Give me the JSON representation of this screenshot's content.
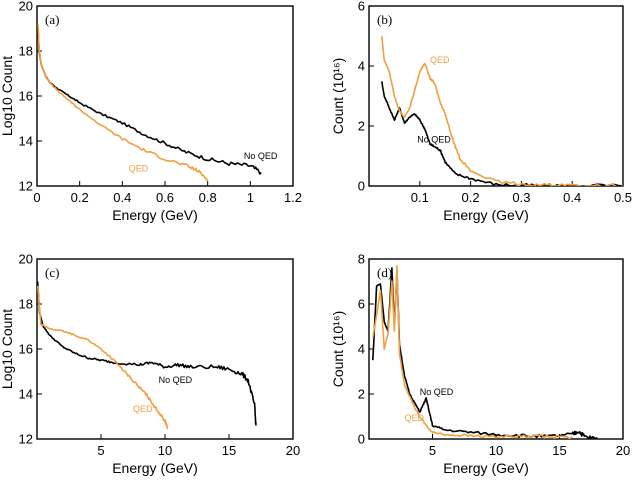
{
  "chart_data": [
    {
      "id": "a",
      "type": "line",
      "panel_label": "(a)",
      "xlabel": "Energy (GeV)",
      "ylabel": "Log10 Count",
      "xlim": [
        0,
        1.2
      ],
      "ylim": [
        12,
        20
      ],
      "xticks": [
        0,
        0.2,
        0.4,
        0.6,
        0.8,
        1,
        1.2
      ],
      "xtick_labels": [
        "0",
        "0.2",
        "0.4",
        "0.6",
        "0.8",
        "1",
        "1.2"
      ],
      "yticks": [
        12,
        14,
        16,
        18,
        20
      ],
      "ytick_labels": [
        "12",
        "14",
        "16",
        "18",
        "20"
      ],
      "series": [
        {
          "name": "No QED",
          "color": "#000000",
          "x": [
            0.005,
            0.01,
            0.02,
            0.04,
            0.06,
            0.1,
            0.15,
            0.2,
            0.3,
            0.4,
            0.5,
            0.6,
            0.7,
            0.8,
            0.9,
            1.0,
            1.05
          ],
          "y": [
            19.0,
            18.0,
            17.4,
            16.9,
            16.6,
            16.3,
            16.0,
            15.7,
            15.2,
            14.8,
            14.3,
            13.9,
            13.5,
            13.2,
            13.0,
            12.9,
            12.6
          ]
        },
        {
          "name": "QED",
          "color": "#f0a040",
          "x": [
            0.005,
            0.01,
            0.02,
            0.04,
            0.06,
            0.1,
            0.15,
            0.2,
            0.3,
            0.4,
            0.5,
            0.6,
            0.7,
            0.75,
            0.8
          ],
          "y": [
            19.2,
            18.1,
            17.4,
            16.9,
            16.6,
            16.2,
            15.8,
            15.4,
            14.7,
            14.1,
            13.6,
            13.2,
            12.9,
            12.7,
            12.3
          ]
        }
      ],
      "annotations": [
        {
          "text": "No QED",
          "x": 0.97,
          "y": 13.2,
          "color": "#000000"
        },
        {
          "text": "QED",
          "x": 0.43,
          "y": 12.65,
          "color": "#f0a040"
        }
      ]
    },
    {
      "id": "b",
      "type": "line",
      "panel_label": "(b)",
      "xlabel": "Energy (GeV)",
      "ylabel": "Count (10¹⁶)",
      "xlim": [
        0,
        0.5
      ],
      "ylim": [
        0,
        6
      ],
      "xticks": [
        0.1,
        0.2,
        0.3,
        0.4,
        0.5
      ],
      "xtick_labels": [
        "0.1",
        "0.2",
        "0.3",
        "0.4",
        "0.5"
      ],
      "yticks": [
        0,
        2,
        4,
        6
      ],
      "ytick_labels": [
        "0",
        "2",
        "4",
        "6"
      ],
      "series": [
        {
          "name": "No QED",
          "color": "#000000",
          "x": [
            0.025,
            0.03,
            0.04,
            0.05,
            0.06,
            0.07,
            0.08,
            0.09,
            0.1,
            0.11,
            0.12,
            0.13,
            0.14,
            0.15,
            0.17,
            0.2,
            0.25,
            0.3,
            0.35,
            0.4,
            0.5
          ],
          "y": [
            3.5,
            3.0,
            2.6,
            2.2,
            2.6,
            2.1,
            2.3,
            2.4,
            2.2,
            1.9,
            1.4,
            1.3,
            1.2,
            0.8,
            0.4,
            0.25,
            0.05,
            0.02,
            0.01,
            0.01,
            0.0
          ]
        },
        {
          "name": "QED",
          "color": "#f0a040",
          "x": [
            0.025,
            0.03,
            0.04,
            0.05,
            0.06,
            0.07,
            0.08,
            0.09,
            0.1,
            0.11,
            0.12,
            0.13,
            0.14,
            0.15,
            0.16,
            0.17,
            0.18,
            0.2,
            0.25,
            0.3,
            0.35,
            0.4,
            0.5
          ],
          "y": [
            5.0,
            4.2,
            3.8,
            3.0,
            2.5,
            2.3,
            2.6,
            3.2,
            3.8,
            4.1,
            3.6,
            3.4,
            2.8,
            2.4,
            1.8,
            1.3,
            0.9,
            0.5,
            0.15,
            0.06,
            0.03,
            0.02,
            0.0
          ]
        }
      ],
      "annotations": [
        {
          "text": "QED",
          "x": 0.12,
          "y": 4.1,
          "color": "#f0a040"
        },
        {
          "text": "No QED",
          "x": 0.095,
          "y": 1.45,
          "color": "#000000"
        }
      ]
    },
    {
      "id": "c",
      "type": "line",
      "panel_label": "(c)",
      "xlabel": "Energy (GeV)",
      "ylabel": "Log10 Count",
      "xlim": [
        0,
        20
      ],
      "ylim": [
        12,
        20
      ],
      "xticks": [
        5,
        10,
        15,
        20
      ],
      "xtick_labels": [
        "5",
        "10",
        "15",
        "20"
      ],
      "yticks": [
        12,
        14,
        16,
        18,
        20
      ],
      "ytick_labels": [
        "12",
        "14",
        "16",
        "18",
        "20"
      ],
      "series": [
        {
          "name": "No QED",
          "color": "#000000",
          "x": [
            0.05,
            0.2,
            0.5,
            1,
            2,
            3,
            4,
            5,
            6,
            8,
            9,
            10,
            11,
            12,
            14,
            15,
            16,
            16.5,
            17,
            17.1
          ],
          "y": [
            19.0,
            17.6,
            17.0,
            16.6,
            16.1,
            15.8,
            15.6,
            15.5,
            15.4,
            15.3,
            15.4,
            15.2,
            15.3,
            15.2,
            15.2,
            15.1,
            14.9,
            14.6,
            13.5,
            12.6
          ]
        },
        {
          "name": "QED",
          "color": "#f0a040",
          "x": [
            0.05,
            0.3,
            1,
            2,
            3,
            4,
            5,
            6,
            7,
            8,
            8.5,
            9,
            9.5,
            10,
            10.2
          ],
          "y": [
            18.8,
            17.1,
            16.9,
            16.8,
            16.6,
            16.4,
            16.0,
            15.5,
            14.9,
            14.3,
            14.0,
            13.6,
            13.2,
            12.8,
            12.5
          ]
        }
      ],
      "annotations": [
        {
          "text": "No QED",
          "x": 9.5,
          "y": 14.5,
          "color": "#000000"
        },
        {
          "text": "QED",
          "x": 7.5,
          "y": 13.2,
          "color": "#f0a040"
        }
      ]
    },
    {
      "id": "d",
      "type": "line",
      "panel_label": "(d)",
      "xlabel": "Energy (GeV)",
      "ylabel": "Count (10¹⁶)",
      "xlim": [
        0,
        20
      ],
      "ylim": [
        0,
        8
      ],
      "xticks": [
        5,
        10,
        15,
        20
      ],
      "xtick_labels": [
        "5",
        "10",
        "15",
        "20"
      ],
      "yticks": [
        0,
        2,
        4,
        6,
        8
      ],
      "ytick_labels": [
        "0",
        "2",
        "4",
        "6",
        "8"
      ],
      "series": [
        {
          "name": "No QED",
          "color": "#000000",
          "x": [
            0.3,
            0.6,
            0.9,
            1.2,
            1.5,
            1.8,
            2.0,
            2.2,
            2.4,
            2.8,
            3.2,
            3.6,
            4.0,
            4.5,
            5,
            6,
            8,
            10,
            12,
            14,
            16,
            16.5,
            17,
            18
          ],
          "y": [
            3.5,
            6.8,
            6.9,
            5.2,
            4.8,
            7.6,
            5.0,
            7.5,
            4.2,
            2.8,
            2.0,
            1.6,
            1.2,
            1.8,
            0.6,
            0.4,
            0.3,
            0.2,
            0.15,
            0.1,
            0.2,
            0.35,
            0.1,
            0.0
          ]
        },
        {
          "name": "QED",
          "color": "#f0a040",
          "x": [
            0.3,
            0.6,
            0.9,
            1.2,
            1.5,
            1.8,
            2.0,
            2.2,
            2.4,
            2.8,
            3.2,
            3.6,
            4.0,
            4.5,
            5,
            6,
            8,
            10,
            12,
            14,
            16
          ],
          "y": [
            4.5,
            5.5,
            6.6,
            4.0,
            4.7,
            7.0,
            4.8,
            7.7,
            3.8,
            2.4,
            1.9,
            1.4,
            1.0,
            0.6,
            0.3,
            0.2,
            0.15,
            0.1,
            0.1,
            0.1,
            0.1
          ]
        }
      ],
      "annotations": [
        {
          "text": "No QED",
          "x": 4.0,
          "y": 1.95,
          "color": "#000000"
        },
        {
          "text": "QED",
          "x": 2.8,
          "y": 0.8,
          "color": "#f0a040"
        }
      ]
    }
  ]
}
